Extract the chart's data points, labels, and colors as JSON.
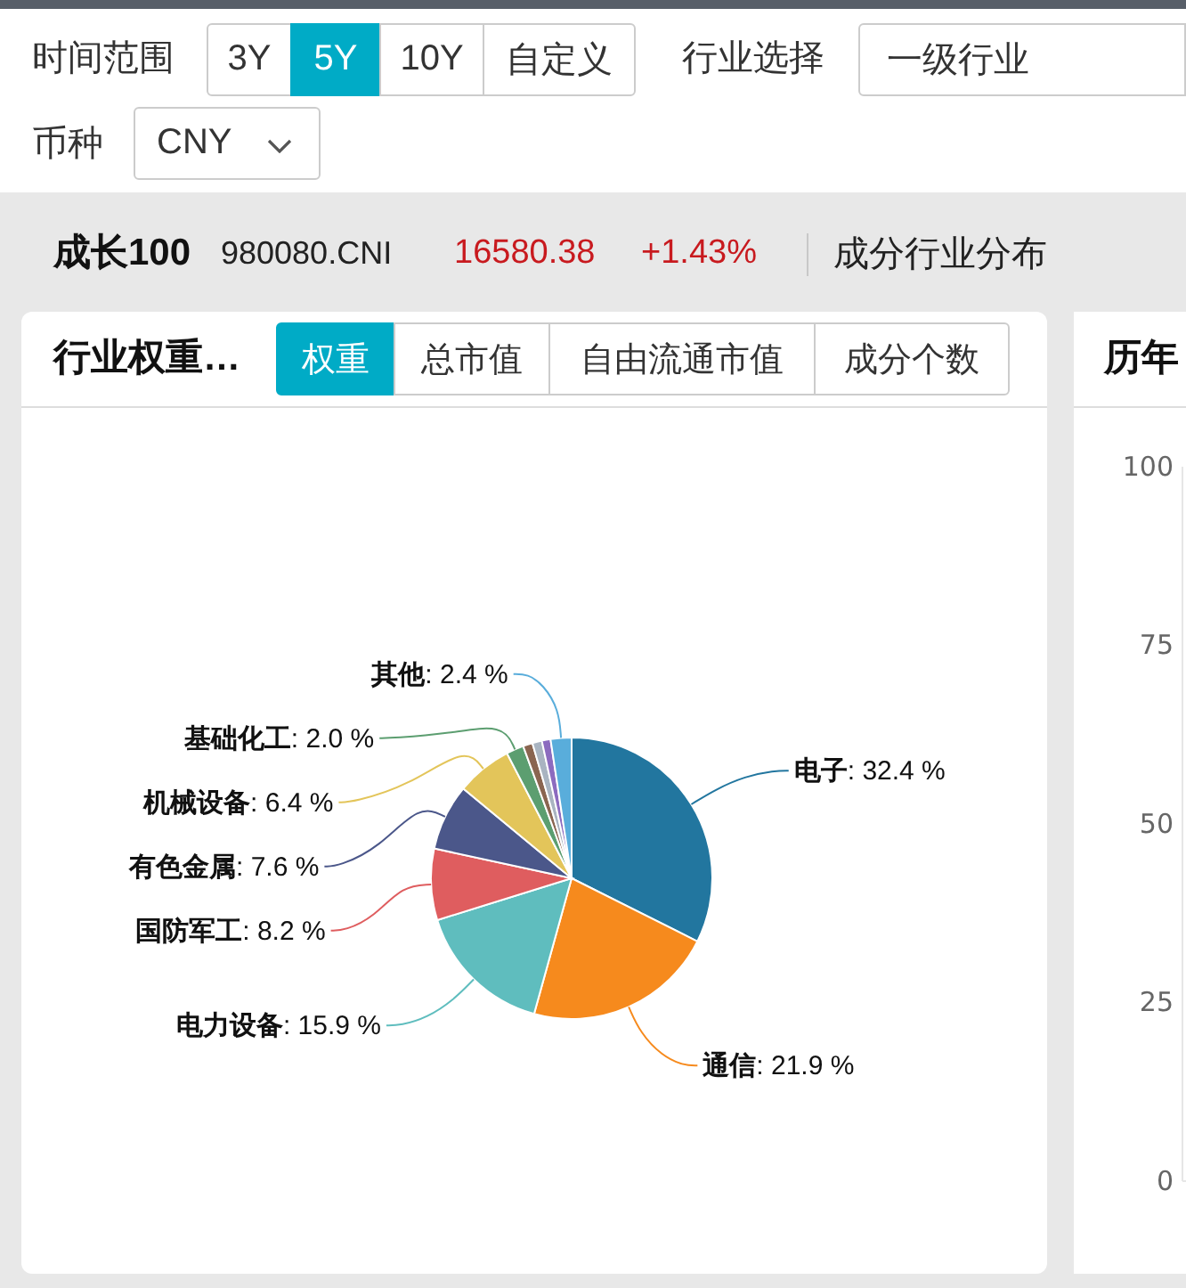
{
  "chart_data": [
    {
      "type": "pie",
      "title": "行业权重…",
      "categories": [
        "电子",
        "通信",
        "电力设备",
        "国防军工",
        "有色金属",
        "机械设备",
        "基础化工",
        null,
        null,
        null,
        "其他"
      ],
      "values": [
        32.4,
        21.9,
        15.9,
        8.2,
        7.6,
        6.4,
        2.0,
        1.1,
        1.1,
        1.0,
        2.4
      ],
      "value_labels": [
        ": 32.4 %",
        ": 21.9 %",
        ": 15.9 %",
        ": 8.2 %",
        ": 7.6 %",
        ": 6.4 %",
        ": 2.0 %",
        null,
        null,
        null,
        ": 2.4 %"
      ],
      "colors": [
        "#22769f",
        "#f68a1d",
        "#5fbdbe",
        "#df5d5f",
        "#4b578a",
        "#e3c55a",
        "#5c9e70",
        "#8a6550",
        "#a9b4c1",
        "#8c6bbf",
        "#59addb"
      ],
      "annotations": [
        "时间范围",
        "3Y",
        "5Y",
        "10Y",
        "自定义",
        "行业选择",
        "一级行业",
        "币种",
        "CNY",
        "成长100",
        "980080.CNI",
        "16580.38",
        "+1.43%",
        "成分行业分布",
        "权重",
        "总市值",
        "自由流通市值",
        "成分个数"
      ]
    },
    {
      "type": "bar",
      "title": "历年",
      "categories": [
        null
      ],
      "values": [
        null
      ],
      "ylim": [
        0,
        100
      ],
      "yticks": [
        0,
        25,
        50,
        75,
        100
      ],
      "tick_labels": "y"
    }
  ]
}
